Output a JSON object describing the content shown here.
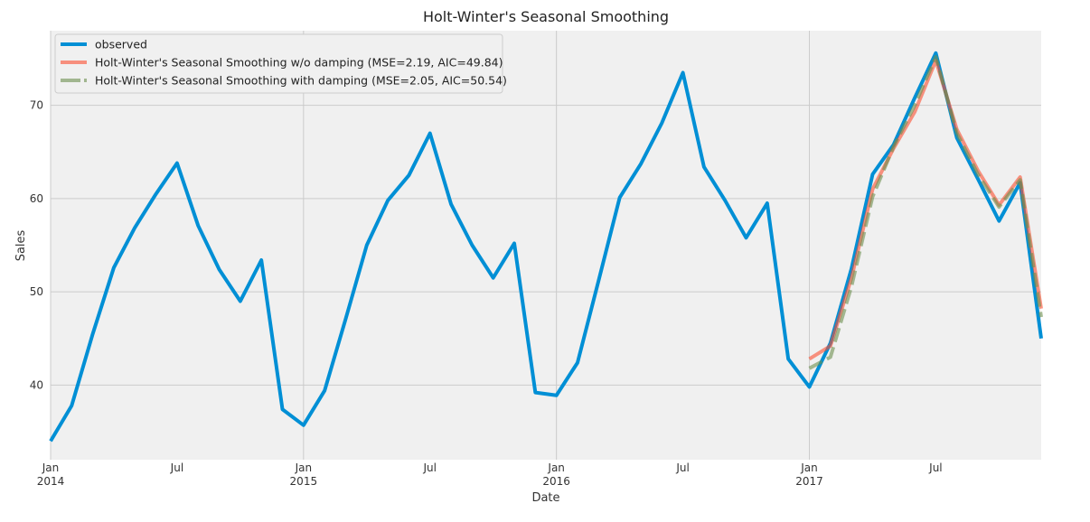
{
  "chart_data": {
    "type": "line",
    "title": "Holt-Winter's Seasonal Smoothing",
    "xlabel": "Date",
    "ylabel": "Sales",
    "xlim": [
      "2014-01",
      "2017-12"
    ],
    "ylim": [
      32,
      78
    ],
    "grid": true,
    "legend_position": "top-left",
    "y_ticks": [
      40,
      50,
      60,
      70
    ],
    "x_ticks": [
      {
        "date": "2014-01",
        "label": "Jan",
        "sublabel": "2014",
        "major": true
      },
      {
        "date": "2014-07",
        "label": "Jul",
        "sublabel": "",
        "major": false
      },
      {
        "date": "2015-01",
        "label": "Jan",
        "sublabel": "2015",
        "major": true
      },
      {
        "date": "2015-07",
        "label": "Jul",
        "sublabel": "",
        "major": false
      },
      {
        "date": "2016-01",
        "label": "Jan",
        "sublabel": "2016",
        "major": true
      },
      {
        "date": "2016-07",
        "label": "Jul",
        "sublabel": "",
        "major": false
      },
      {
        "date": "2017-01",
        "label": "Jan",
        "sublabel": "2017",
        "major": true
      },
      {
        "date": "2017-07",
        "label": "Jul",
        "sublabel": "",
        "major": false
      }
    ],
    "series": [
      {
        "name": "observed",
        "color": "#008fd5",
        "style": "solid",
        "x": [
          "2014-01",
          "2014-02",
          "2014-03",
          "2014-04",
          "2014-05",
          "2014-06",
          "2014-07",
          "2014-08",
          "2014-09",
          "2014-10",
          "2014-11",
          "2014-12",
          "2015-01",
          "2015-02",
          "2015-03",
          "2015-04",
          "2015-05",
          "2015-06",
          "2015-07",
          "2015-08",
          "2015-09",
          "2015-10",
          "2015-11",
          "2015-12",
          "2016-01",
          "2016-02",
          "2016-03",
          "2016-04",
          "2016-05",
          "2016-06",
          "2016-07",
          "2016-08",
          "2016-09",
          "2016-10",
          "2016-11",
          "2016-12",
          "2017-01",
          "2017-02",
          "2017-03",
          "2017-04",
          "2017-05",
          "2017-06",
          "2017-07",
          "2017-08",
          "2017-09",
          "2017-10",
          "2017-11",
          "2017-12"
        ],
        "y": [
          34.0,
          37.8,
          45.5,
          52.6,
          56.9,
          60.5,
          63.8,
          57.1,
          52.4,
          49.0,
          53.4,
          37.4,
          35.7,
          39.4,
          47.1,
          55.0,
          59.8,
          62.5,
          67.0,
          59.4,
          55.0,
          51.5,
          55.2,
          39.2,
          38.9,
          42.4,
          51.2,
          60.1,
          63.7,
          68.1,
          73.5,
          63.4,
          59.8,
          55.8,
          59.5,
          42.8,
          39.8,
          44.5,
          52.5,
          62.6,
          65.8,
          70.8,
          75.6,
          66.5,
          62.1,
          57.6,
          61.7,
          45.0
        ]
      },
      {
        "name": "Holt-Winter's Seasonal Smoothing w/o damping (MSE=2.19, AIC=49.84)",
        "color": "#fc4f30",
        "style": "solid",
        "x": [
          "2017-01",
          "2017-02",
          "2017-03",
          "2017-04",
          "2017-05",
          "2017-06",
          "2017-07",
          "2017-08",
          "2017-09",
          "2017-10",
          "2017-11",
          "2017-12"
        ],
        "y": [
          42.8,
          44.2,
          51.5,
          61.0,
          65.4,
          69.3,
          74.8,
          67.4,
          63.0,
          59.3,
          62.3,
          48.2
        ]
      },
      {
        "name": "Holt-Winter's Seasonal Smoothing with damping (MSE=2.05, AIC=50.54)",
        "color": "#6d904f",
        "style": "dashed",
        "x": [
          "2017-01",
          "2017-02",
          "2017-03",
          "2017-04",
          "2017-05",
          "2017-06",
          "2017-07",
          "2017-08",
          "2017-09",
          "2017-10",
          "2017-11",
          "2017-12"
        ],
        "y": [
          41.8,
          43.0,
          50.6,
          60.2,
          65.6,
          70.0,
          75.2,
          67.0,
          62.6,
          59.1,
          62.0,
          47.3
        ]
      }
    ]
  }
}
